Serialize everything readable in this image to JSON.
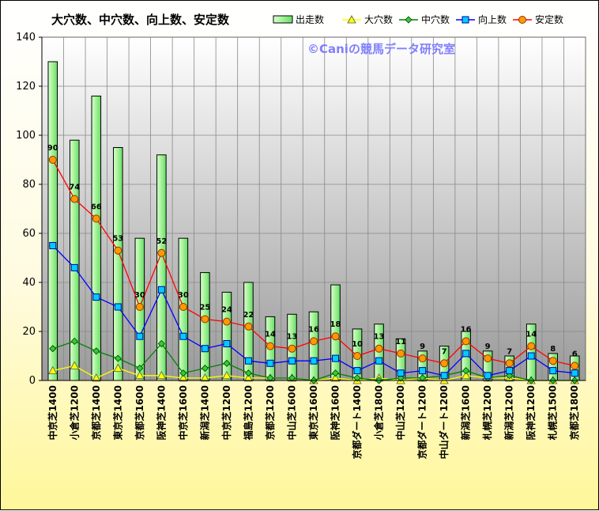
{
  "chart_data": {
    "type": "bar",
    "title": "大穴数、中穴数、向上数、安定数",
    "watermark": "©Caniの競馬データ研究室",
    "ylim": [
      0,
      140
    ],
    "yticks": [
      0,
      20,
      40,
      60,
      80,
      100,
      120,
      140
    ],
    "grid": true,
    "legend_position": "top-right",
    "categories": [
      "中京芝1400",
      "小倉芝1200",
      "京都芝1400",
      "東京芝1400",
      "京都芝1600",
      "阪神芝1400",
      "中京芝1600",
      "新潟芝1400",
      "中京芝1200",
      "福島芝1200",
      "京都芝1200",
      "中山芝1600",
      "東京芝1600",
      "阪神芝1600",
      "京都ダート1400",
      "小倉芝1800",
      "中山芝1200",
      "京都ダート1200",
      "中山ダート1200",
      "新潟芝1600",
      "札幌芝1200",
      "新潟芝1200",
      "阪神芝1200",
      "札幌芝1500",
      "京都芝1800"
    ],
    "series": [
      {
        "name": "出走数",
        "kind": "bar",
        "color": "#66dd66",
        "values": [
          130,
          98,
          116,
          95,
          58,
          92,
          58,
          44,
          36,
          40,
          26,
          27,
          28,
          39,
          21,
          23,
          17,
          12,
          14,
          20,
          12,
          10,
          23,
          11,
          10
        ]
      },
      {
        "name": "大穴数",
        "kind": "line",
        "color": "#ffff00",
        "marker": "triangle",
        "values": [
          4,
          6,
          1,
          5,
          2,
          2,
          1,
          1,
          2,
          1,
          1,
          1,
          0,
          1,
          0,
          1,
          0,
          1,
          0,
          2,
          1,
          1,
          0,
          0,
          0
        ]
      },
      {
        "name": "中穴数",
        "kind": "line",
        "color": "#008000",
        "marker": "diamond",
        "values": [
          13,
          16,
          12,
          9,
          5,
          15,
          3,
          5,
          7,
          3,
          1,
          1,
          0,
          3,
          1,
          0,
          1,
          1,
          2,
          4,
          1,
          2,
          0,
          0,
          0
        ]
      },
      {
        "name": "向上数",
        "kind": "line",
        "color": "#0000ff",
        "marker": "square",
        "values": [
          55,
          46,
          34,
          30,
          18,
          37,
          18,
          13,
          15,
          8,
          7,
          8,
          8,
          9,
          4,
          8,
          3,
          4,
          2,
          11,
          2,
          4,
          10,
          4,
          3
        ]
      },
      {
        "name": "安定数",
        "kind": "line",
        "color": "#ff0000",
        "marker": "circle",
        "values": [
          90,
          74,
          66,
          53,
          30,
          52,
          30,
          25,
          24,
          22,
          14,
          13,
          16,
          18,
          10,
          13,
          11,
          9,
          7,
          16,
          9,
          7,
          14,
          8,
          6
        ],
        "data_labels": true
      }
    ]
  }
}
